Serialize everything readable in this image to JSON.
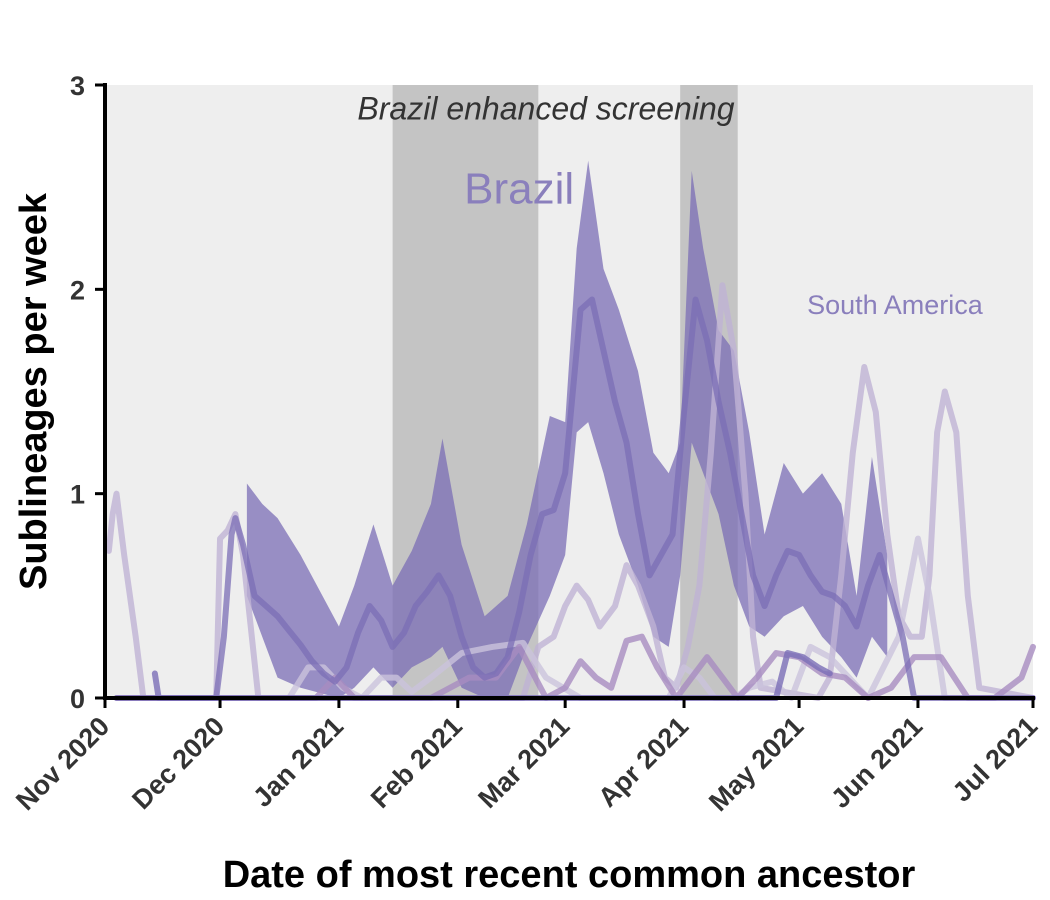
{
  "chart_data": {
    "type": "area",
    "xlabel": "Date of most recent common ancestor",
    "ylabel": "Sublineages per week",
    "xlim": [
      "2020-11-01",
      "2021-07-01"
    ],
    "ylim": [
      0,
      3
    ],
    "x_ticks": [
      "2020-11-01",
      "2020-12-01",
      "2021-01-01",
      "2021-02-01",
      "2021-03-01",
      "2021-04-01",
      "2021-05-01",
      "2021-06-01",
      "2021-07-01"
    ],
    "x_tick_labels": [
      "Nov 2020",
      "Dec 2020",
      "Jan 2021",
      "Feb 2021",
      "Mar 2021",
      "Apr 2021",
      "May 2021",
      "Jun 2021",
      "Jul 2021"
    ],
    "y_ticks": [
      0,
      1,
      2,
      3
    ],
    "y_tick_labels": [
      "0",
      "1",
      "2",
      "3"
    ],
    "grid": false,
    "background": "#eeeeee",
    "shaded_periods": [
      {
        "start": "2021-01-15",
        "end": "2021-02-22",
        "color": "#c4c4c4"
      },
      {
        "start": "2021-03-31",
        "end": "2021-04-15",
        "color": "#c4c4c4"
      }
    ],
    "annotations": [
      {
        "text": "Brazil enhanced screening",
        "x": "2021-02-24",
        "y": 2.83,
        "color": "#333333"
      },
      {
        "text": "Brazil",
        "x": "2021-02-17",
        "y": 2.42,
        "color": "#8a7fbc"
      },
      {
        "text": "South America",
        "x": "2021-05-26",
        "y": 1.88,
        "color": "#8a7fbc"
      }
    ],
    "series": [
      {
        "color": "#7b6eb6",
        "points": [
          [
            "2020-11-04",
            0
          ],
          [
            "2020-11-30",
            0
          ],
          [
            "2020-12-02",
            0.3
          ],
          [
            "2020-12-04",
            0.8
          ],
          [
            "2020-12-05",
            0.88
          ],
          [
            "2020-12-07",
            0.75
          ],
          [
            "2020-12-10",
            0.5
          ],
          [
            "2020-12-13",
            0.45
          ],
          [
            "2020-12-16",
            0.4
          ],
          [
            "2020-12-19",
            0.33
          ],
          [
            "2020-12-22",
            0.26
          ],
          [
            "2020-12-25",
            0.18
          ],
          [
            "2020-12-28",
            0.12
          ],
          [
            "2020-12-31",
            0.08
          ],
          [
            "2021-01-03",
            0.15
          ],
          [
            "2021-01-06",
            0.32
          ],
          [
            "2021-01-09",
            0.45
          ],
          [
            "2021-01-12",
            0.38
          ],
          [
            "2021-01-15",
            0.25
          ],
          [
            "2021-01-18",
            0.32
          ],
          [
            "2021-01-21",
            0.45
          ],
          [
            "2021-01-24",
            0.52
          ],
          [
            "2021-01-27",
            0.6
          ],
          [
            "2021-01-30",
            0.5
          ],
          [
            "2021-02-02",
            0.3
          ],
          [
            "2021-02-05",
            0.15
          ],
          [
            "2021-02-08",
            0.1
          ],
          [
            "2021-02-11",
            0.12
          ],
          [
            "2021-02-14",
            0.2
          ],
          [
            "2021-02-17",
            0.42
          ],
          [
            "2021-02-20",
            0.7
          ],
          [
            "2021-02-23",
            0.9
          ],
          [
            "2021-02-26",
            0.92
          ],
          [
            "2021-03-01",
            1.1
          ],
          [
            "2021-03-03",
            1.5
          ],
          [
            "2021-03-05",
            1.9
          ],
          [
            "2021-03-08",
            1.95
          ],
          [
            "2021-03-11",
            1.7
          ],
          [
            "2021-03-14",
            1.45
          ],
          [
            "2021-03-17",
            1.25
          ],
          [
            "2021-03-20",
            0.9
          ],
          [
            "2021-03-23",
            0.6
          ],
          [
            "2021-03-26",
            0.7
          ],
          [
            "2021-03-29",
            0.8
          ],
          [
            "2021-04-01",
            1.4
          ],
          [
            "2021-04-04",
            1.95
          ],
          [
            "2021-04-07",
            1.75
          ],
          [
            "2021-04-10",
            1.45
          ],
          [
            "2021-04-13",
            1.2
          ],
          [
            "2021-04-16",
            0.9
          ],
          [
            "2021-04-19",
            0.6
          ],
          [
            "2021-04-22",
            0.45
          ],
          [
            "2021-04-25",
            0.6
          ],
          [
            "2021-04-28",
            0.72
          ],
          [
            "2021-05-01",
            0.7
          ],
          [
            "2021-05-04",
            0.6
          ],
          [
            "2021-05-07",
            0.52
          ],
          [
            "2021-05-10",
            0.5
          ],
          [
            "2021-05-13",
            0.45
          ],
          [
            "2021-05-16",
            0.35
          ],
          [
            "2021-05-19",
            0.55
          ],
          [
            "2021-05-22",
            0.7
          ],
          [
            "2021-05-25",
            0.5
          ],
          [
            "2021-05-28",
            0.3
          ],
          [
            "2021-05-31",
            0
          ],
          [
            "2021-07-01",
            0
          ]
        ],
        "band_lower": [
          [
            "2020-12-08",
            0.5
          ],
          [
            "2020-12-12",
            0.3
          ],
          [
            "2020-12-16",
            0.1
          ],
          [
            "2020-12-22",
            0.05
          ],
          [
            "2021-01-01",
            0
          ],
          [
            "2021-01-05",
            0.05
          ],
          [
            "2021-01-10",
            0.15
          ],
          [
            "2021-01-15",
            0.05
          ],
          [
            "2021-01-20",
            0.15
          ],
          [
            "2021-01-25",
            0.2
          ],
          [
            "2021-01-28",
            0.25
          ],
          [
            "2021-02-02",
            0.05
          ],
          [
            "2021-02-08",
            0
          ],
          [
            "2021-02-14",
            0
          ],
          [
            "2021-02-19",
            0.25
          ],
          [
            "2021-02-25",
            0.5
          ],
          [
            "2021-03-01",
            0.7
          ],
          [
            "2021-03-04",
            1.3
          ],
          [
            "2021-03-07",
            1.35
          ],
          [
            "2021-03-11",
            1.1
          ],
          [
            "2021-03-15",
            0.8
          ],
          [
            "2021-03-20",
            0.55
          ],
          [
            "2021-03-24",
            0.3
          ],
          [
            "2021-03-28",
            0.25
          ],
          [
            "2021-03-31",
            0.6
          ],
          [
            "2021-04-03",
            1.25
          ],
          [
            "2021-04-06",
            1.1
          ],
          [
            "2021-04-10",
            0.9
          ],
          [
            "2021-04-14",
            0.55
          ],
          [
            "2021-04-18",
            0.35
          ],
          [
            "2021-04-22",
            0.3
          ],
          [
            "2021-04-27",
            0.4
          ],
          [
            "2021-05-02",
            0.45
          ],
          [
            "2021-05-07",
            0.3
          ],
          [
            "2021-05-12",
            0.2
          ],
          [
            "2021-05-16",
            0.1
          ],
          [
            "2021-05-20",
            0.3
          ],
          [
            "2021-05-24",
            0.2
          ]
        ],
        "band_upper": [
          [
            "2020-12-08",
            1.05
          ],
          [
            "2020-12-12",
            0.95
          ],
          [
            "2020-12-16",
            0.88
          ],
          [
            "2020-12-22",
            0.7
          ],
          [
            "2021-01-01",
            0.35
          ],
          [
            "2021-01-05",
            0.55
          ],
          [
            "2021-01-10",
            0.85
          ],
          [
            "2021-01-15",
            0.55
          ],
          [
            "2021-01-20",
            0.72
          ],
          [
            "2021-01-25",
            0.95
          ],
          [
            "2021-01-28",
            1.27
          ],
          [
            "2021-02-02",
            0.75
          ],
          [
            "2021-02-08",
            0.4
          ],
          [
            "2021-02-14",
            0.5
          ],
          [
            "2021-02-19",
            0.85
          ],
          [
            "2021-02-25",
            1.38
          ],
          [
            "2021-03-01",
            1.35
          ],
          [
            "2021-03-04",
            2.2
          ],
          [
            "2021-03-07",
            2.63
          ],
          [
            "2021-03-11",
            2.1
          ],
          [
            "2021-03-15",
            1.9
          ],
          [
            "2021-03-20",
            1.6
          ],
          [
            "2021-03-24",
            1.2
          ],
          [
            "2021-03-28",
            1.1
          ],
          [
            "2021-03-31",
            1.25
          ],
          [
            "2021-04-03",
            2.58
          ],
          [
            "2021-04-06",
            2.2
          ],
          [
            "2021-04-10",
            1.8
          ],
          [
            "2021-04-14",
            1.7
          ],
          [
            "2021-04-18",
            1.3
          ],
          [
            "2021-04-22",
            0.8
          ],
          [
            "2021-04-27",
            1.15
          ],
          [
            "2021-05-02",
            1.0
          ],
          [
            "2021-05-07",
            1.1
          ],
          [
            "2021-05-12",
            0.95
          ],
          [
            "2021-05-16",
            0.5
          ],
          [
            "2021-05-20",
            1.18
          ],
          [
            "2021-05-24",
            0.7
          ]
        ]
      },
      {
        "color": "#bfb3d4",
        "points": [
          [
            "2020-11-02",
            0.72
          ],
          [
            "2020-11-03",
            0.9
          ],
          [
            "2020-11-04",
            1.0
          ],
          [
            "2020-11-06",
            0.7
          ],
          [
            "2020-11-09",
            0.3
          ],
          [
            "2020-11-11",
            0
          ],
          [
            "2020-11-30",
            0
          ],
          [
            "2020-12-01",
            0.78
          ],
          [
            "2020-12-03",
            0.82
          ],
          [
            "2020-12-05",
            0.9
          ],
          [
            "2020-12-07",
            0.7
          ],
          [
            "2020-12-09",
            0.35
          ],
          [
            "2020-12-11",
            0
          ],
          [
            "2021-02-18",
            0
          ],
          [
            "2021-02-22",
            0.25
          ],
          [
            "2021-02-26",
            0.3
          ],
          [
            "2021-03-01",
            0.45
          ],
          [
            "2021-03-04",
            0.55
          ],
          [
            "2021-03-07",
            0.48
          ],
          [
            "2021-03-10",
            0.35
          ],
          [
            "2021-03-14",
            0.45
          ],
          [
            "2021-03-17",
            0.65
          ],
          [
            "2021-03-20",
            0.55
          ],
          [
            "2021-03-24",
            0.35
          ],
          [
            "2021-03-27",
            0.1
          ],
          [
            "2021-03-30",
            0.05
          ],
          [
            "2021-04-02",
            0.25
          ],
          [
            "2021-04-05",
            0.55
          ],
          [
            "2021-04-08",
            1.2
          ],
          [
            "2021-04-11",
            2.02
          ],
          [
            "2021-04-14",
            1.7
          ],
          [
            "2021-04-17",
            1.0
          ],
          [
            "2021-04-19",
            0.3
          ],
          [
            "2021-04-21",
            0.05
          ],
          [
            "2021-05-06",
            0
          ],
          [
            "2021-05-09",
            0.1
          ],
          [
            "2021-05-12",
            0.6
          ],
          [
            "2021-05-15",
            1.2
          ],
          [
            "2021-05-18",
            1.62
          ],
          [
            "2021-05-21",
            1.4
          ],
          [
            "2021-05-24",
            0.8
          ],
          [
            "2021-05-27",
            0.4
          ],
          [
            "2021-05-30",
            0.3
          ],
          [
            "2021-06-02",
            0.3
          ],
          [
            "2021-06-04",
            0.6
          ],
          [
            "2021-06-06",
            1.3
          ],
          [
            "2021-06-08",
            1.5
          ],
          [
            "2021-06-11",
            1.3
          ],
          [
            "2021-06-14",
            0.5
          ],
          [
            "2021-06-17",
            0.05
          ],
          [
            "2021-07-01",
            0
          ]
        ]
      },
      {
        "color": "#cbc3dc",
        "points": [
          [
            "2020-12-19",
            0
          ],
          [
            "2020-12-24",
            0.15
          ],
          [
            "2020-12-28",
            0.15
          ],
          [
            "2021-01-02",
            0.05
          ],
          [
            "2021-01-07",
            0
          ],
          [
            "2021-01-12",
            0.1
          ],
          [
            "2021-01-16",
            0.1
          ],
          [
            "2021-01-20",
            0.03
          ],
          [
            "2021-01-25",
            0.1
          ],
          [
            "2021-02-02",
            0.22
          ],
          [
            "2021-02-10",
            0.25
          ],
          [
            "2021-02-18",
            0.27
          ],
          [
            "2021-02-24",
            0.1
          ],
          [
            "2021-03-05",
            0
          ],
          [
            "2021-03-28",
            0
          ],
          [
            "2021-04-01",
            0.15
          ],
          [
            "2021-04-05",
            0.1
          ],
          [
            "2021-04-09",
            0
          ],
          [
            "2021-04-14",
            0
          ],
          [
            "2021-04-18",
            0.05
          ],
          [
            "2021-04-24",
            0.08
          ],
          [
            "2021-04-29",
            0
          ],
          [
            "2021-05-04",
            0.25
          ],
          [
            "2021-05-09",
            0.2
          ],
          [
            "2021-05-14",
            0.1
          ],
          [
            "2021-05-19",
            0
          ],
          [
            "2021-05-27",
            0.3
          ],
          [
            "2021-06-01",
            0.78
          ],
          [
            "2021-06-04",
            0.5
          ],
          [
            "2021-06-08",
            0
          ],
          [
            "2021-07-01",
            0
          ]
        ]
      },
      {
        "color": "#a88cc0",
        "points": [
          [
            "2020-11-04",
            0
          ],
          [
            "2020-12-26",
            0
          ],
          [
            "2020-12-31",
            0.1
          ],
          [
            "2021-01-05",
            0
          ],
          [
            "2021-01-25",
            0
          ],
          [
            "2021-01-30",
            0.05
          ],
          [
            "2021-02-04",
            0.1
          ],
          [
            "2021-02-11",
            0.1
          ],
          [
            "2021-02-17",
            0.25
          ],
          [
            "2021-02-24",
            0
          ],
          [
            "2021-03-01",
            0.05
          ],
          [
            "2021-03-05",
            0.18
          ],
          [
            "2021-03-09",
            0.1
          ],
          [
            "2021-03-13",
            0.05
          ],
          [
            "2021-03-17",
            0.28
          ],
          [
            "2021-03-21",
            0.3
          ],
          [
            "2021-03-25",
            0.15
          ],
          [
            "2021-03-30",
            0
          ],
          [
            "2021-04-03",
            0.1
          ],
          [
            "2021-04-07",
            0.2
          ],
          [
            "2021-04-11",
            0.1
          ],
          [
            "2021-04-15",
            0
          ],
          [
            "2021-04-20",
            0.1
          ],
          [
            "2021-04-25",
            0.22
          ],
          [
            "2021-05-01",
            0.2
          ],
          [
            "2021-05-07",
            0.12
          ],
          [
            "2021-05-13",
            0.1
          ],
          [
            "2021-05-19",
            0
          ],
          [
            "2021-05-25",
            0.05
          ],
          [
            "2021-05-31",
            0.2
          ],
          [
            "2021-06-07",
            0.2
          ],
          [
            "2021-06-14",
            0
          ],
          [
            "2021-06-21",
            0
          ],
          [
            "2021-06-28",
            0.1
          ],
          [
            "2021-07-01",
            0.25
          ]
        ]
      },
      {
        "color": "#7b6eb6",
        "points": [
          [
            "2020-11-14",
            0.12
          ],
          [
            "2020-11-15",
            0
          ],
          [
            "2021-04-25",
            0
          ],
          [
            "2021-04-28",
            0.22
          ],
          [
            "2021-05-02",
            0.2
          ],
          [
            "2021-05-06",
            0.15
          ],
          [
            "2021-05-09",
            0.12
          ]
        ]
      }
    ]
  }
}
